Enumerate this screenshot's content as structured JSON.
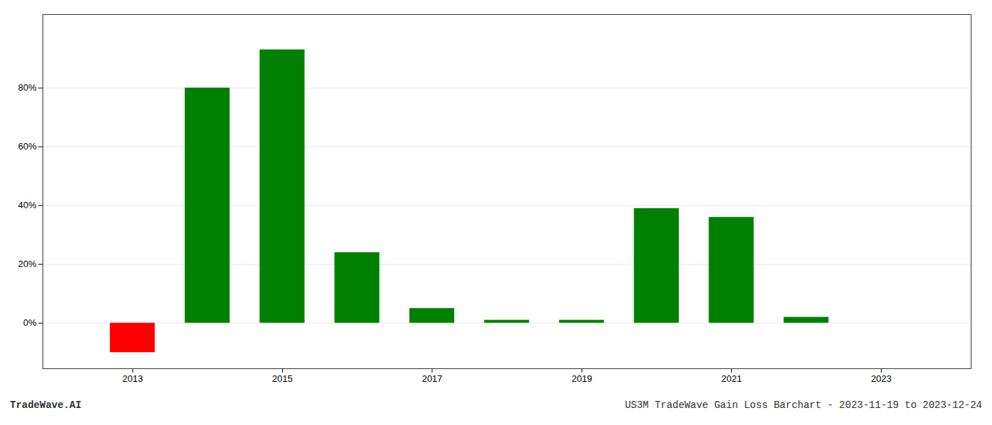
{
  "chart_data": {
    "type": "bar",
    "x": [
      2013,
      2014,
      2015,
      2016,
      2017,
      2018,
      2019,
      2020,
      2021,
      2022,
      2023
    ],
    "values": [
      -0.1,
      0.8,
      0.93,
      0.24,
      0.05,
      0.01,
      0.01,
      0.39,
      0.36,
      0.02,
      0.0
    ],
    "colors": [
      "#ff0000",
      "#008000",
      "#008000",
      "#008000",
      "#008000",
      "#008000",
      "#008000",
      "#008000",
      "#008000",
      "#008000",
      "#008000"
    ],
    "xlim": [
      2011.8,
      2024.2
    ],
    "xticks": [
      2013,
      2015,
      2017,
      2019,
      2021,
      2023
    ],
    "ylim": [
      -0.155,
      1.05
    ],
    "yticks": [
      {
        "value": 0.0,
        "label": "0%"
      },
      {
        "value": 0.2,
        "label": "20%"
      },
      {
        "value": 0.4,
        "label": "40%"
      },
      {
        "value": 0.6,
        "label": "60%"
      },
      {
        "value": 0.8,
        "label": "80%"
      }
    ],
    "grid": true,
    "annotations": [
      "TradeWave.AI",
      "US3M TradeWave Gain Loss Barchart - 2023-11-19 to 2023-12-24"
    ]
  }
}
